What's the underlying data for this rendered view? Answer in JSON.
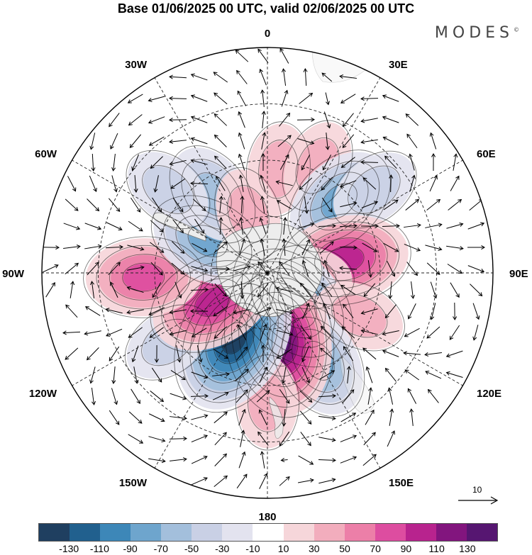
{
  "title": "Base 01/06/2025 00 UTC, valid 02/06/2025 00 UTC",
  "brand": "MODES",
  "brand_mark": "©",
  "longitude_labels": {
    "top": "0",
    "right": "90E",
    "bottom": "180",
    "left": "90W",
    "ne": "30E",
    "ene": "60E",
    "ese": "120E",
    "se": "150E",
    "sw": "150W",
    "wsw": "120W",
    "wnw": "60W",
    "nw": "30W"
  },
  "reference_vector_label": "10",
  "colorbar": {
    "labels": [
      "-130",
      "-110",
      "-90",
      "-70",
      "-50",
      "-30",
      "-10",
      "10",
      "30",
      "50",
      "70",
      "90",
      "110",
      "130"
    ],
    "colors": [
      "#1f3f60",
      "#21608e",
      "#3d87b8",
      "#6ea5cd",
      "#a3bfdc",
      "#c9d0e5",
      "#e3e3ef",
      "#ffffff",
      "#f6d6da",
      "#f2adbd",
      "#ec7fa8",
      "#dd4da0",
      "#b8238e",
      "#82157e",
      "#561671"
    ]
  },
  "anomalies": [
    {
      "name": "pos",
      "lon": 6,
      "colat": 37,
      "value": 30
    },
    {
      "name": "pos",
      "lon": 25,
      "colat": 42,
      "value": 30
    },
    {
      "name": "neg",
      "lon": 45,
      "colat": 36,
      "value": -70
    },
    {
      "name": "neg",
      "lon": 52,
      "colat": 48,
      "value": -30
    },
    {
      "name": "pos",
      "lon": 80,
      "colat": 28,
      "value": 90
    },
    {
      "name": "pos",
      "lon": 96,
      "colat": 14,
      "value": 30
    },
    {
      "name": "neg",
      "lon": 140,
      "colat": 14,
      "value": -110
    },
    {
      "name": "pos",
      "lon": 115,
      "colat": 36,
      "value": 30
    },
    {
      "name": "neg",
      "lon": 150,
      "colat": 36,
      "value": -70
    },
    {
      "name": "pos",
      "lon": 170,
      "colat": 24,
      "value": 130
    },
    {
      "name": "pos",
      "lon": 180,
      "colat": 46,
      "value": 30
    },
    {
      "name": "neg",
      "lon": -153,
      "colat": 26,
      "value": -130
    },
    {
      "name": "neg",
      "lon": -125,
      "colat": 43,
      "value": -30
    },
    {
      "name": "pos",
      "lon": -118,
      "colat": 22,
      "value": 90
    },
    {
      "name": "pos",
      "lon": -92,
      "colat": 44,
      "value": 70
    },
    {
      "name": "neg",
      "lon": -62,
      "colat": 24,
      "value": -70
    },
    {
      "name": "neg",
      "lon": -35,
      "colat": 34,
      "value": -50
    },
    {
      "name": "pos",
      "lon": -18,
      "colat": 22,
      "value": 30
    },
    {
      "name": "neg",
      "lon": -50,
      "colat": 46,
      "value": -30
    }
  ]
}
